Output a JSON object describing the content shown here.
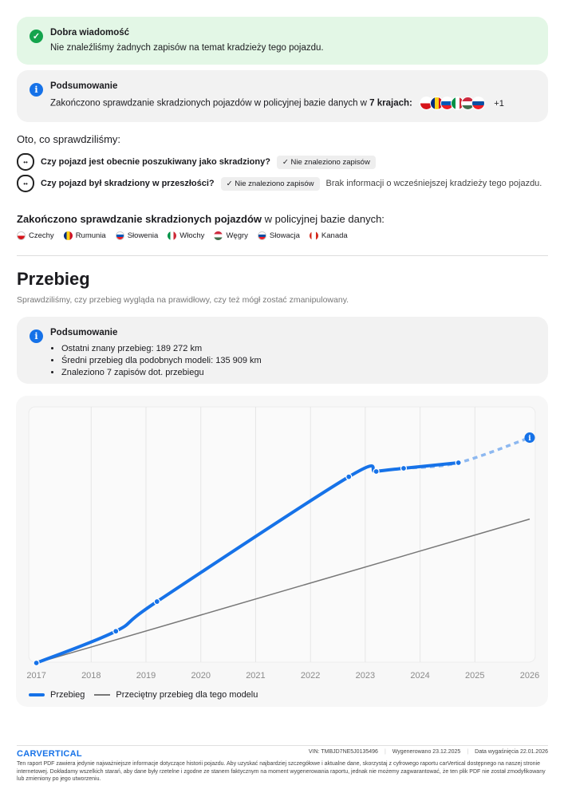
{
  "good_news": {
    "title": "Dobra wiadomość",
    "text": "Nie znaleźliśmy żadnych zapisów na temat kradzieży tego pojazdu."
  },
  "summary": {
    "title": "Podsumowanie",
    "text": "Zakończono sprawdzanie skradzionych pojazdów w policyjnej bazie danych w ",
    "bold": "7 krajach:",
    "more": "+1"
  },
  "checked": {
    "title": "Oto, co sprawdziliśmy:",
    "items": [
      {
        "question": "Czy pojazd jest obecnie poszukiwany jako skradziony?",
        "badge": "✓ Nie znaleziono zapisów",
        "note": ""
      },
      {
        "question": "Czy pojazd był skradziony w przeszłości?",
        "badge": "✓ Nie znaleziono zapisów",
        "note": "Brak informacji o wcześniejszej kradzieży tego pojazdu."
      }
    ]
  },
  "countries": {
    "title_bold": "Zakończono sprawdzanie skradzionych pojazdów",
    "title_rest": " w policyjnej bazie danych:",
    "list": [
      "Czechy",
      "Rumunia",
      "Słowenia",
      "Włochy",
      "Węgry",
      "Słowacja",
      "Kanada"
    ]
  },
  "mileage": {
    "title": "Przebieg",
    "subtitle": "Sprawdziliśmy, czy przebieg wygląda na prawidłowy, czy też mógł zostać zmanipulowany.",
    "summary_title": "Podsumowanie",
    "bullets": [
      "Ostatni znany przebieg: 189 272 km",
      "Średni przebieg dla podobnych modeli: 135 909 km",
      "Znaleziono 7 zapisów dot. przebiegu"
    ]
  },
  "chart_data": {
    "type": "line",
    "xlabel": "",
    "ylabel": "",
    "x_ticks": [
      "2017",
      "2018",
      "2019",
      "2020",
      "2021",
      "2022",
      "2023",
      "2024",
      "2025",
      "2026"
    ],
    "xlim": [
      2017,
      2026
    ],
    "ylim": [
      0,
      230000
    ],
    "grid": "vertical",
    "series": [
      {
        "name": "Przebieg",
        "color": "#1672e8",
        "x": [
          2017.0,
          2018.45,
          2019.2,
          2022.7,
          2023.2,
          2023.7,
          2024.7
        ],
        "y": [
          0,
          30000,
          58000,
          176000,
          181000,
          184000,
          189272
        ],
        "projection": {
          "x": [
            2024.7,
            2026.0
          ],
          "y": [
            189272,
            213000
          ]
        }
      },
      {
        "name": "Przeciętny przebieg dla tego modelu",
        "color": "#777777",
        "x": [
          2017,
          2026
        ],
        "y": [
          0,
          136000
        ]
      }
    ],
    "legend": "bottom-left"
  },
  "footer": {
    "logo": "CARVERTICAL",
    "vin": "VIN:  TMBJD7NE5J0135496",
    "generated": "Wygenerowano  23.12.2025",
    "expires": "Data wygaśnięcia  22.01.2026",
    "disclaimer": "Ten raport PDF zawiera jedynie najważniejsze informacje dotyczące historii pojazdu. Aby uzyskać najbardziej szczegółowe i aktualne dane, skorzystaj z cyfrowego raportu carVertical dostępnego na naszej stronie internetowej. Dokładamy wszelkich starań, aby dane były rzetelne i zgodne ze stanem faktycznym na moment wygenerowania raportu, jednak nie możemy zagwarantować, że ten plik PDF nie został zmodyfikowany lub zmieniony po jego utworzeniu."
  }
}
